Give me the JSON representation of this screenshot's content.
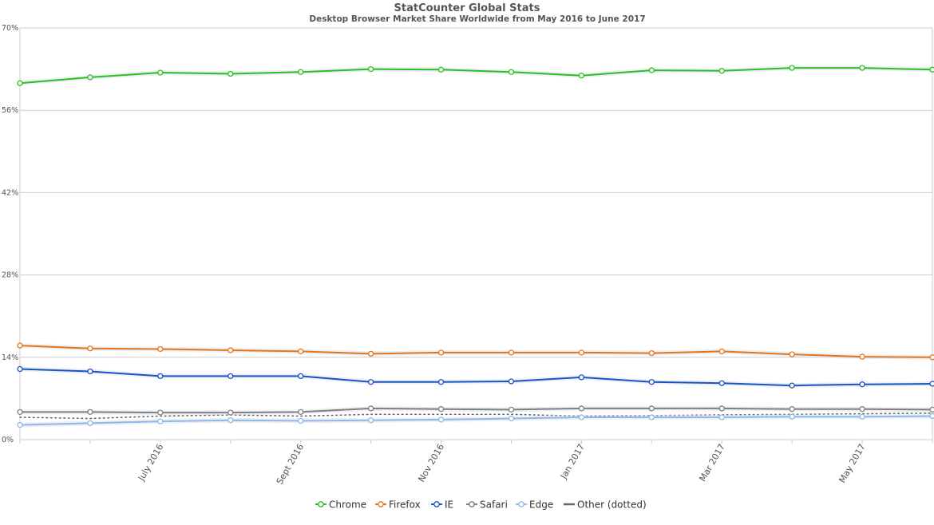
{
  "chart_data": {
    "type": "line",
    "title": "StatCounter Global Stats",
    "subtitle": "Desktop Browser Market Share Worldwide from May 2016 to June 2017",
    "x": [
      "2016-05",
      "2016-06",
      "2016-07",
      "2016-08",
      "2016-09",
      "2016-10",
      "2016-11",
      "2016-12",
      "2017-01",
      "2017-02",
      "2017-03",
      "2017-04",
      "2017-05",
      "2017-06"
    ],
    "x_tick_labels": [
      {
        "index": 2,
        "label": "July 2016"
      },
      {
        "index": 4,
        "label": "Sept 2016"
      },
      {
        "index": 6,
        "label": "Nov 2016"
      },
      {
        "index": 8,
        "label": "Jan 2017"
      },
      {
        "index": 10,
        "label": "Mar 2017"
      },
      {
        "index": 12,
        "label": "May 2017"
      }
    ],
    "y_ticks": [
      "0%",
      "14%",
      "28%",
      "42%",
      "56%",
      "70%"
    ],
    "y_tick_values": [
      0,
      14,
      28,
      42,
      56,
      70
    ],
    "ylim": [
      0,
      70
    ],
    "grid": true,
    "legend_position": "bottom",
    "series": [
      {
        "name": "Chrome",
        "color": "#2cbf1f",
        "marker": true,
        "dashed": false,
        "values": [
          60.6,
          61.6,
          62.4,
          62.2,
          62.5,
          63.0,
          62.9,
          62.5,
          61.9,
          62.8,
          62.7,
          63.2,
          63.2,
          62.9
        ]
      },
      {
        "name": "Firefox",
        "color": "#e5751b",
        "marker": true,
        "dashed": false,
        "values": [
          16.0,
          15.5,
          15.4,
          15.2,
          15.0,
          14.6,
          14.8,
          14.8,
          14.8,
          14.7,
          15.0,
          14.5,
          14.1,
          14.0
        ]
      },
      {
        "name": "IE",
        "color": "#1a54c4",
        "marker": true,
        "dashed": false,
        "values": [
          12.0,
          11.6,
          10.8,
          10.8,
          10.8,
          9.8,
          9.8,
          9.9,
          10.6,
          9.8,
          9.6,
          9.2,
          9.4,
          9.5
        ]
      },
      {
        "name": "Safari",
        "color": "#808080",
        "marker": true,
        "dashed": false,
        "values": [
          4.7,
          4.7,
          4.6,
          4.6,
          4.7,
          5.3,
          5.2,
          5.1,
          5.3,
          5.3,
          5.3,
          5.2,
          5.2,
          5.1
        ]
      },
      {
        "name": "Edge",
        "color": "#8fb8e8",
        "marker": true,
        "dashed": false,
        "values": [
          2.5,
          2.8,
          3.1,
          3.3,
          3.2,
          3.3,
          3.4,
          3.6,
          3.8,
          3.8,
          3.8,
          3.9,
          3.9,
          4.0
        ]
      },
      {
        "name": "Other (dotted)",
        "color": "#666666",
        "marker": false,
        "dashed": true,
        "values": [
          3.8,
          3.6,
          4.0,
          4.2,
          4.0,
          4.3,
          4.3,
          4.3,
          4.0,
          4.1,
          4.2,
          4.3,
          4.4,
          4.5
        ]
      }
    ]
  }
}
